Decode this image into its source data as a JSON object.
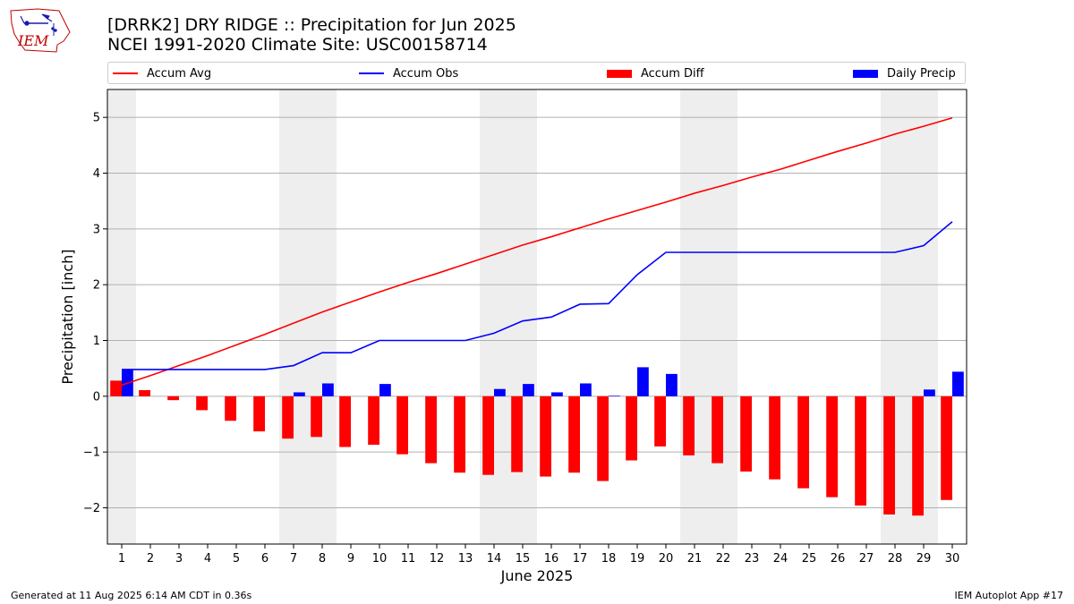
{
  "title_line1": "[DRRK2] DRY RIDGE :: Precipitation for Jun 2025",
  "title_line2": "NCEI 1991-2020 Climate Site: USC00158714",
  "logo_text": "IEM",
  "footer_left": "Generated at 11 Aug 2025 6:14 AM CDT in 0.36s",
  "footer_right": "IEM Autoplot App #17",
  "colors": {
    "avg": "#ff0000",
    "obs": "#0000ff",
    "diff": "#ff0000",
    "daily": "#0000ff",
    "weekend_shade": "#eeeeee",
    "grid": "#b0b0b0"
  },
  "legend": [
    {
      "label": "Accum Avg",
      "kind": "line",
      "color": "#ff0000"
    },
    {
      "label": "Accum Obs",
      "kind": "line",
      "color": "#0000ff"
    },
    {
      "label": "Accum Diff",
      "kind": "patch",
      "color": "#ff0000"
    },
    {
      "label": "Daily Precip",
      "kind": "patch",
      "color": "#0000ff"
    }
  ],
  "chart_data": {
    "type": "bar",
    "xlabel": "June 2025",
    "ylabel": "Precipitation [inch]",
    "ylim": [
      -2.65,
      5.5
    ],
    "xlim": [
      0.5,
      30.5
    ],
    "yticks": [
      5,
      4,
      3,
      2,
      1,
      0,
      -1,
      -2
    ],
    "ytick_labels": [
      "5",
      "4",
      "3",
      "2",
      "1",
      "0",
      "−1",
      "−2"
    ],
    "x": [
      1,
      2,
      3,
      4,
      5,
      6,
      7,
      8,
      9,
      10,
      11,
      12,
      13,
      14,
      15,
      16,
      17,
      18,
      19,
      20,
      21,
      22,
      23,
      24,
      25,
      26,
      27,
      28,
      29,
      30
    ],
    "grid": "y",
    "legend_position": "top",
    "shaded_days": [
      [
        1,
        1
      ],
      [
        7,
        8
      ],
      [
        14,
        15
      ],
      [
        21,
        22
      ],
      [
        28,
        29
      ]
    ],
    "series": [
      {
        "name": "Accum Avg",
        "type": "line",
        "values": [
          0.2,
          0.37,
          0.55,
          0.73,
          0.92,
          1.11,
          1.31,
          1.51,
          1.69,
          1.87,
          2.04,
          2.2,
          2.37,
          2.54,
          2.71,
          2.86,
          3.02,
          3.18,
          3.33,
          3.48,
          3.64,
          3.78,
          3.93,
          4.07,
          4.23,
          4.39,
          4.54,
          4.7,
          4.84,
          4.99
        ]
      },
      {
        "name": "Accum Obs",
        "type": "line",
        "values": [
          0.48,
          0.48,
          0.48,
          0.48,
          0.48,
          0.48,
          0.55,
          0.78,
          0.78,
          1.0,
          1.0,
          1.0,
          1.0,
          1.13,
          1.35,
          1.42,
          1.65,
          1.66,
          2.18,
          2.58,
          2.58,
          2.58,
          2.58,
          2.58,
          2.58,
          2.58,
          2.58,
          2.58,
          2.7,
          3.13
        ]
      },
      {
        "name": "Accum Diff",
        "type": "bar",
        "values": [
          0.28,
          0.11,
          -0.07,
          -0.25,
          -0.44,
          -0.63,
          -0.76,
          -0.73,
          -0.91,
          -0.87,
          -1.04,
          -1.2,
          -1.37,
          -1.41,
          -1.36,
          -1.44,
          -1.37,
          -1.52,
          -1.15,
          -0.9,
          -1.06,
          -1.2,
          -1.35,
          -1.49,
          -1.65,
          -1.81,
          -1.96,
          -2.12,
          -2.14,
          -1.86
        ]
      },
      {
        "name": "Daily Precip",
        "type": "bar",
        "values": [
          0.48,
          0,
          0,
          0,
          0,
          0,
          0.07,
          0.23,
          0,
          0.22,
          0,
          0,
          0,
          0.13,
          0.22,
          0.07,
          0.23,
          0.01,
          0.52,
          0.4,
          0,
          0,
          0,
          0,
          0,
          0,
          0,
          0,
          0.12,
          0.44
        ]
      }
    ]
  }
}
